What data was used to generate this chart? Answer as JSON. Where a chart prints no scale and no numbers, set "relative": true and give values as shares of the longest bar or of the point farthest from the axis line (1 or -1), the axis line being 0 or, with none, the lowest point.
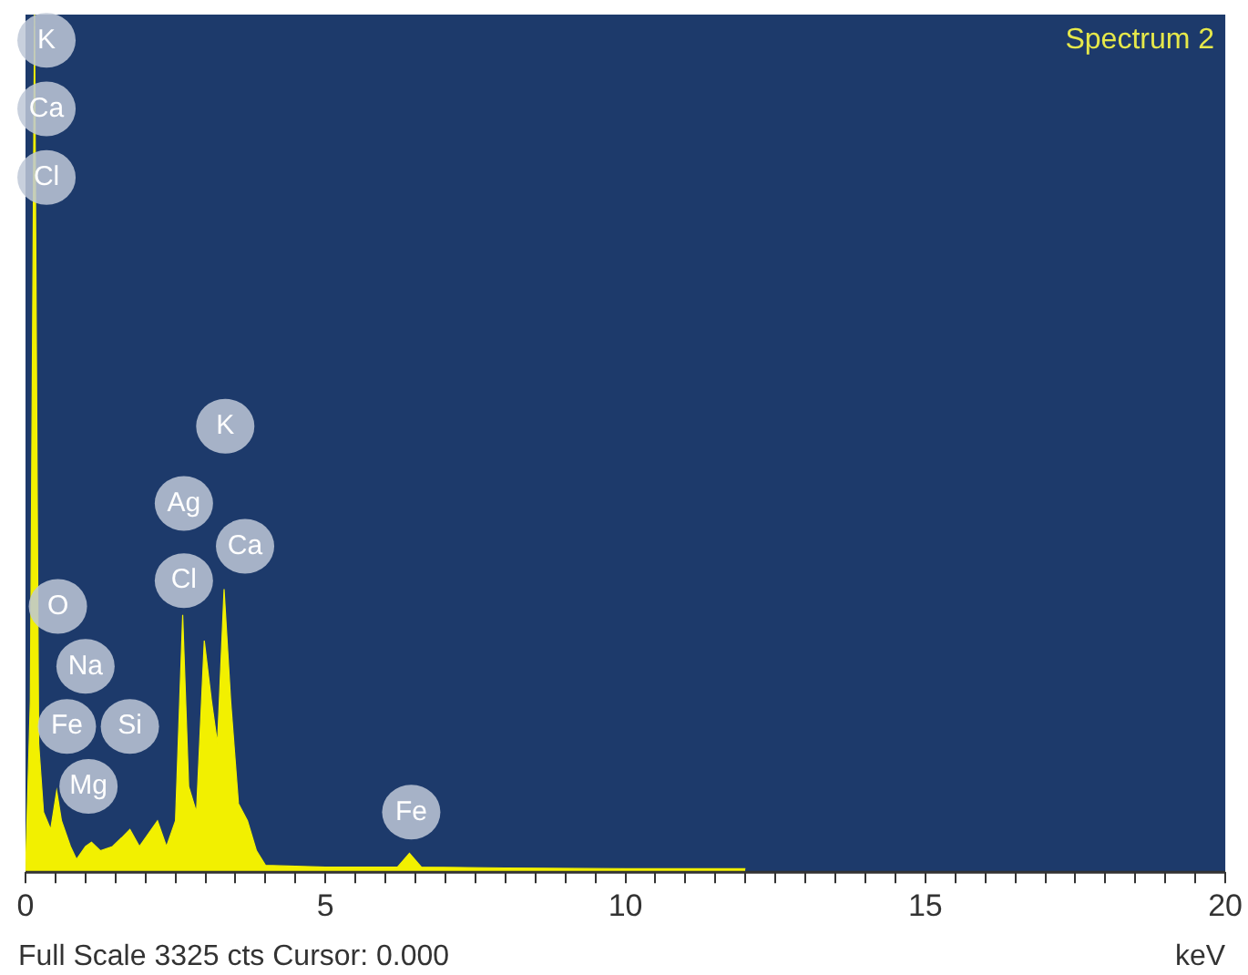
{
  "chart_data": {
    "type": "area",
    "title": "Spectrum 2",
    "xlabel": "keV",
    "relative": true,
    "color": "#f2f000",
    "x": [
      0,
      0.08,
      0.15,
      0.22,
      0.3,
      0.42,
      0.52,
      0.6,
      0.75,
      0.85,
      1.0,
      1.1,
      1.25,
      1.45,
      1.6,
      1.74,
      1.9,
      2.05,
      2.2,
      2.35,
      2.5,
      2.62,
      2.72,
      2.85,
      2.98,
      3.1,
      3.2,
      3.31,
      3.42,
      3.55,
      3.7,
      3.85,
      4.0,
      5,
      6.2,
      6.4,
      6.6,
      8,
      10,
      12
    ],
    "values": [
      0,
      0.2,
      1.0,
      0.15,
      0.07,
      0.05,
      0.095,
      0.06,
      0.03,
      0.015,
      0.03,
      0.035,
      0.025,
      0.03,
      0.04,
      0.05,
      0.03,
      0.045,
      0.06,
      0.03,
      0.06,
      0.3,
      0.1,
      0.07,
      0.27,
      0.2,
      0.15,
      0.33,
      0.2,
      0.08,
      0.06,
      0.025,
      0.008,
      0.006,
      0.006,
      0.022,
      0.006,
      0.005,
      0.004,
      0.004
    ],
    "xlim": [
      0,
      20
    ],
    "xticks": [
      0,
      {
        "value": 0.5,
        "label": null
      },
      {
        "value": 1,
        "label": null
      },
      {
        "value": 1.5,
        "label": null
      },
      {
        "value": 2,
        "label": null
      },
      {
        "value": 2.5,
        "label": null
      },
      {
        "value": 3,
        "label": null
      },
      {
        "value": 3.5,
        "label": null
      },
      {
        "value": 4,
        "label": null
      },
      {
        "value": 4.5,
        "label": null
      },
      5,
      {
        "value": 5.5,
        "label": null
      },
      {
        "value": 6,
        "label": null
      },
      {
        "value": 6.5,
        "label": null
      },
      {
        "value": 7,
        "label": null
      },
      {
        "value": 7.5,
        "label": null
      },
      {
        "value": 8,
        "label": null
      },
      {
        "value": 8.5,
        "label": null
      },
      {
        "value": 9,
        "label": null
      },
      {
        "value": 9.5,
        "label": null
      },
      10,
      {
        "value": 10.5,
        "label": null
      },
      {
        "value": 11,
        "label": null
      },
      {
        "value": 11.5,
        "label": null
      },
      {
        "value": 12,
        "label": null
      },
      {
        "value": 12.5,
        "label": null
      },
      {
        "value": 13,
        "label": null
      },
      {
        "value": 13.5,
        "label": null
      },
      {
        "value": 14,
        "label": null
      },
      {
        "value": 14.5,
        "label": null
      },
      15,
      {
        "value": 15.5,
        "label": null
      },
      {
        "value": 16,
        "label": null
      },
      {
        "value": 16.5,
        "label": null
      },
      {
        "value": 17,
        "label": null
      },
      {
        "value": 17.5,
        "label": null
      },
      {
        "value": 18,
        "label": null
      },
      {
        "value": 18.5,
        "label": null
      },
      {
        "value": 19,
        "label": null
      },
      {
        "value": 19.5,
        "label": null
      },
      20
    ],
    "annotations": [
      "Full Scale 3325 cts Cursor: 0.000",
      {
        "text": "K",
        "x": 0.35,
        "y": 0.97
      },
      {
        "text": "Ca",
        "x": 0.35,
        "y": 0.89
      },
      {
        "text": "Cl",
        "x": 0.35,
        "y": 0.81
      },
      {
        "text": "O",
        "x": 0.54,
        "y": 0.31
      },
      {
        "text": "Na",
        "x": 1.0,
        "y": 0.24
      },
      {
        "text": "Fe",
        "x": 0.69,
        "y": 0.17
      },
      {
        "text": "Si",
        "x": 1.74,
        "y": 0.17
      },
      {
        "text": "Mg",
        "x": 1.05,
        "y": 0.1
      },
      {
        "text": "K",
        "x": 3.33,
        "y": 0.52
      },
      {
        "text": "Ag",
        "x": 2.64,
        "y": 0.43
      },
      {
        "text": "Cl",
        "x": 2.64,
        "y": 0.34
      },
      {
        "text": "Ca",
        "x": 3.66,
        "y": 0.38
      },
      {
        "text": "Fe",
        "x": 6.43,
        "y": 0.07
      }
    ]
  }
}
